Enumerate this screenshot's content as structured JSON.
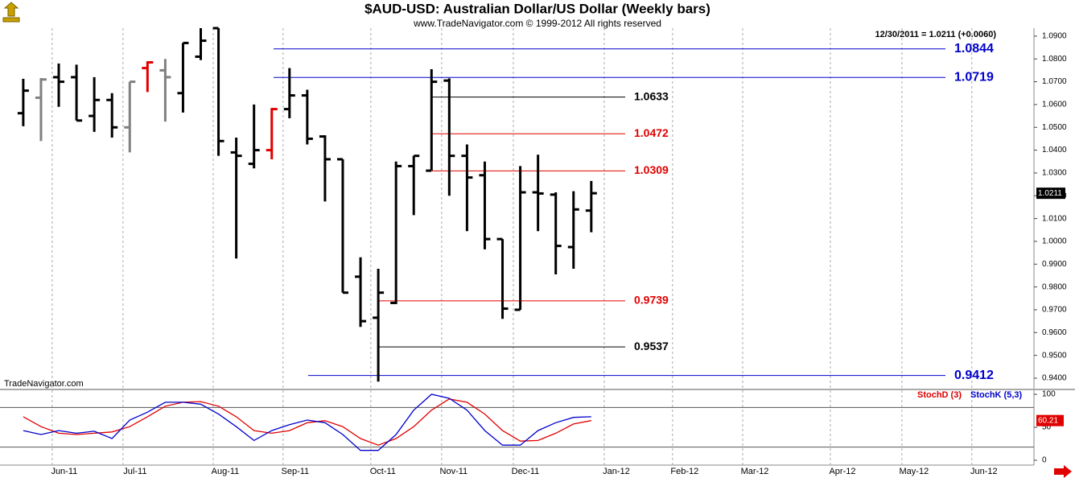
{
  "header": {
    "title": "$AUD-USD:  Australian Dollar/US Dollar  (Weekly bars)",
    "subtitle": "www.TradeNavigator.com © 1999-2012 All rights reserved",
    "info": "12/30/2011 = 1.0211 (+0.0060)",
    "watermark": "TradeNavigator.com"
  },
  "chart_data": [
    {
      "type": "ohlc",
      "open": [
        1.0562,
        1.063,
        1.072,
        1.072,
        1.055,
        1.062,
        1.05,
        1.076,
        1.075,
        1.065,
        1.081,
        1.0935,
        1.039,
        1.034,
        1.04,
        1.058,
        1.064,
        1.046,
        1.036,
        0.9845,
        0.9665,
        0.973,
        1.033,
        1.031,
        1.0705,
        1.0375,
        1.029,
        1.001,
        0.97,
        1.0215,
        1.0205,
        0.9975,
        1.0135
      ],
      "high": [
        1.0713,
        1.0716,
        1.078,
        1.0775,
        1.072,
        1.065,
        1.07,
        1.079,
        1.08,
        1.087,
        1.0935,
        1.0935,
        1.0455,
        1.06,
        1.0585,
        1.076,
        1.0665,
        1.0465,
        1.036,
        0.993,
        0.988,
        1.035,
        1.0375,
        1.0755,
        1.0715,
        1.0425,
        1.035,
        1.001,
        1.033,
        1.038,
        1.0215,
        1.022,
        1.0265
      ],
      "low": [
        1.0505,
        1.044,
        1.059,
        1.053,
        1.048,
        1.0455,
        1.039,
        1.0655,
        1.0525,
        1.0565,
        1.0795,
        1.0375,
        0.9925,
        1.032,
        1.036,
        1.054,
        1.0425,
        1.0175,
        0.9775,
        0.9625,
        0.9385,
        0.9725,
        1.0115,
        1.031,
        1.02,
        1.0045,
        0.9965,
        0.966,
        0.97,
        1.0045,
        0.9855,
        0.988,
        1.004
      ],
      "close": [
        1.0661,
        1.071,
        1.07,
        1.053,
        1.062,
        1.05,
        1.07,
        1.0785,
        1.072,
        1.087,
        1.088,
        1.044,
        1.0375,
        1.04,
        1.058,
        1.064,
        1.045,
        1.036,
        0.9775,
        0.965,
        0.9775,
        1.033,
        1.0375,
        1.07,
        1.0375,
        1.028,
        1.001,
        0.9705,
        1.0215,
        1.021,
        0.998,
        1.014,
        1.0211
      ],
      "colors": [
        "#000000",
        "#808080",
        "#000000",
        "#000000",
        "#000000",
        "#000000",
        "#808080",
        "#e00000",
        "#808080",
        "#000000",
        "#000000",
        "#000000",
        "#000000",
        "#000000",
        "#e00000",
        "#000000",
        "#000000",
        "#000000",
        "#000000",
        "#000000",
        "#000000",
        "#000000",
        "#000000",
        "#000000",
        "#000000",
        "#000000",
        "#000000",
        "#000000",
        "#000000",
        "#000000",
        "#000000",
        "#000000",
        "#000000"
      ],
      "last": 1.0211,
      "levels": [
        {
          "value": 1.0844,
          "color": "#0000cc"
        },
        {
          "value": 1.0719,
          "color": "#0000cc"
        },
        {
          "value": 1.0633,
          "color": "#000000"
        },
        {
          "value": 1.0472,
          "color": "#e00000"
        },
        {
          "value": 1.0309,
          "color": "#e00000"
        },
        {
          "value": 0.9739,
          "color": "#e00000"
        },
        {
          "value": 0.9537,
          "color": "#000000"
        },
        {
          "value": 0.9412,
          "color": "#0000cc"
        }
      ],
      "ylim": [
        0.9354,
        1.0935
      ],
      "yticks": [
        {
          "value": 0.94,
          "label": "0.9400"
        },
        {
          "value": 0.95,
          "label": "0.9500"
        },
        {
          "value": 0.96,
          "label": "0.9600"
        },
        {
          "value": 0.97,
          "label": "0.9700"
        },
        {
          "value": 0.98,
          "label": "0.9800"
        },
        {
          "value": 0.99,
          "label": "0.9900"
        },
        {
          "value": 1.0,
          "label": "1.0000"
        },
        {
          "value": 1.01,
          "label": "1.0100"
        },
        {
          "value": 1.02,
          "label": "1.0200"
        },
        {
          "value": 1.03,
          "label": "1.0300"
        },
        {
          "value": 1.04,
          "label": "1.0400"
        },
        {
          "value": 1.05,
          "label": "1.0500"
        },
        {
          "value": 1.06,
          "label": "1.0600"
        },
        {
          "value": 1.07,
          "label": "1.0700"
        },
        {
          "value": 1.08,
          "label": "1.0800"
        },
        {
          "value": 1.09,
          "label": "1.0900"
        }
      ],
      "xlim": [
        -1.31,
        56.94
      ],
      "xticks": [
        {
          "value": 1.63,
          "label": "Jun-11"
        },
        {
          "value": 5.62,
          "label": "Jul-11"
        },
        {
          "value": 10.7,
          "label": "Aug-11"
        },
        {
          "value": 14.64,
          "label": "Sep-11"
        },
        {
          "value": 19.58,
          "label": "Oct-11"
        },
        {
          "value": 23.57,
          "label": "Nov-11"
        },
        {
          "value": 27.61,
          "label": "Dec-11"
        },
        {
          "value": 32.73,
          "label": "Jan-12"
        },
        {
          "value": 36.58,
          "label": "Feb-12"
        },
        {
          "value": 40.53,
          "label": "Mar-12"
        },
        {
          "value": 45.47,
          "label": "Apr-12"
        },
        {
          "value": 49.5,
          "label": "May-12"
        },
        {
          "value": 53.44,
          "label": "Jun-12"
        }
      ]
    },
    {
      "type": "line",
      "series": [
        {
          "name": "StochD (3)",
          "color": "#e00000",
          "values": [
            66,
            51,
            41,
            39,
            41,
            43,
            51,
            66,
            82,
            88,
            89,
            82,
            66,
            45,
            41,
            45,
            57,
            60,
            51,
            33,
            23,
            33,
            51,
            76,
            93,
            88,
            70,
            45,
            29,
            30,
            41,
            55,
            60.21
          ]
        },
        {
          "name": "StochK (5,3)",
          "color": "#0000cc",
          "values": [
            45,
            39,
            45,
            41,
            44,
            33,
            61,
            73,
            88,
            88,
            85,
            70,
            51,
            30,
            45,
            54,
            61,
            57,
            39,
            15,
            15,
            39,
            76,
            100,
            94,
            76,
            45,
            23,
            23,
            45,
            57,
            65,
            66
          ]
        }
      ],
      "ylim": [
        -7.3,
        103.7
      ],
      "yticks": [
        0,
        50,
        100
      ],
      "hlines": [
        20,
        80
      ],
      "xlim": [
        -1.31,
        56.94
      ]
    }
  ]
}
